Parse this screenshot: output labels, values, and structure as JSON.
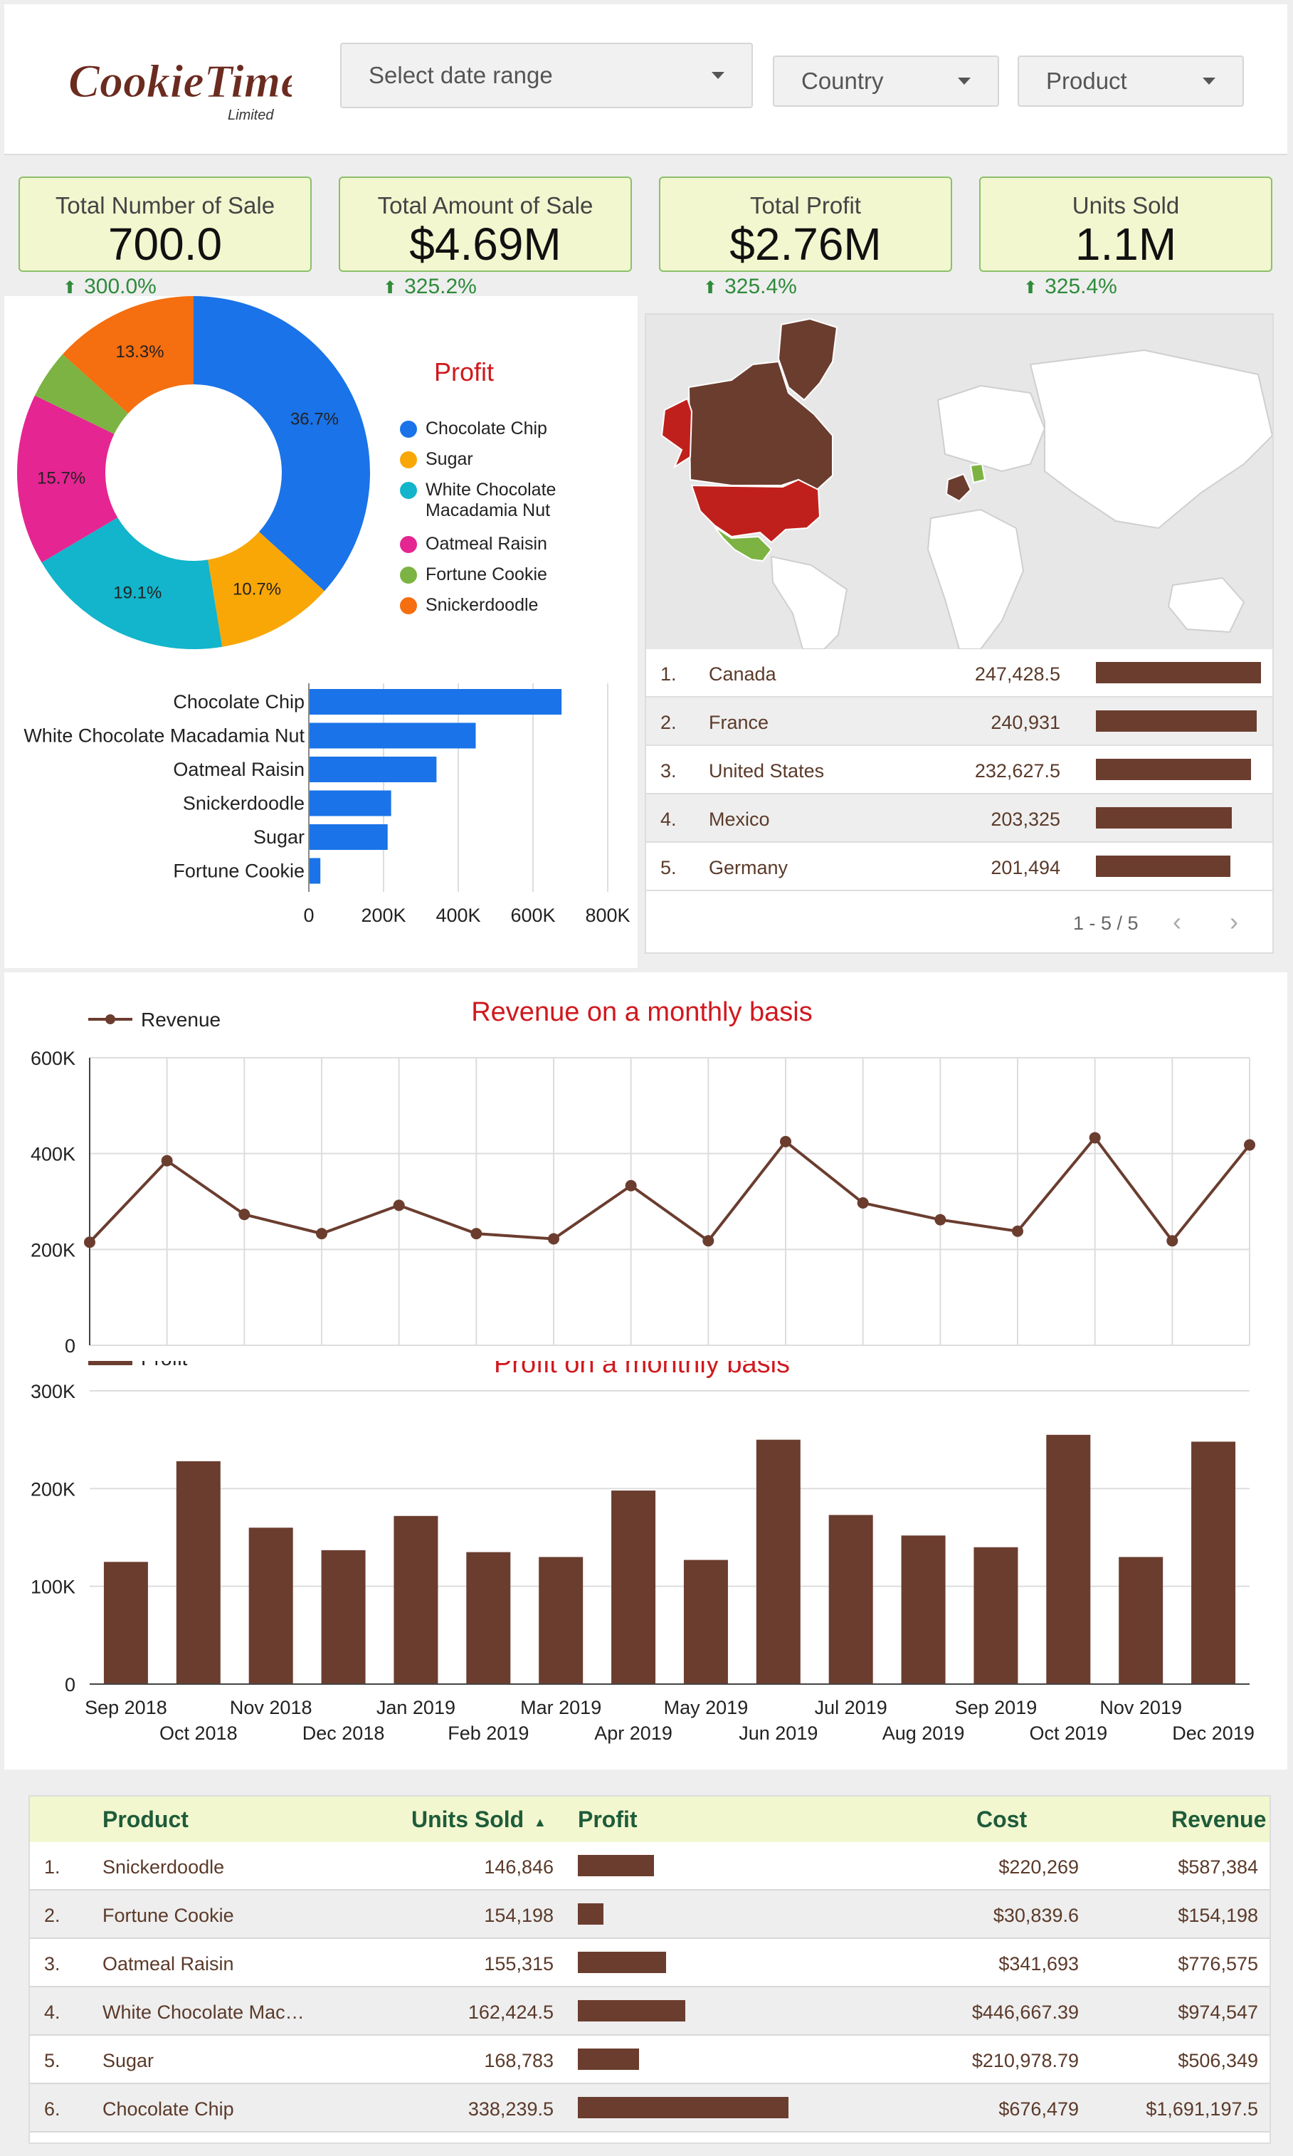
{
  "header": {
    "logo_text": "CookieTime",
    "logo_sub": "Limited",
    "date_range_placeholder": "Select date range",
    "country_label": "Country",
    "product_label": "Product"
  },
  "kpis": [
    {
      "label": "Total Number of Sale",
      "value": "700.0",
      "delta": "300.0%"
    },
    {
      "label": "Total Amount of Sale",
      "value": "$4.69M",
      "delta": "325.2%"
    },
    {
      "label": "Total Profit",
      "value": "$2.76M",
      "delta": "325.4%"
    },
    {
      "label": "Units Sold",
      "value": "1.1M",
      "delta": "325.4%"
    }
  ],
  "colors": {
    "brown": "#6b3d2f",
    "blue": "#1a73e8",
    "kpi_bg": "#f2f7cf",
    "green": "#2e8b3a",
    "red_title": "#d0191e"
  },
  "chart_data": [
    {
      "type": "pie",
      "title": "Profit",
      "labels": [
        "Chocolate Chip",
        "Sugar",
        "White Chocolate Macadamia Nut",
        "Oatmeal Raisin",
        "Fortune Cookie",
        "Snickerdoodle"
      ],
      "values": [
        36.7,
        10.7,
        19.1,
        15.7,
        4.5,
        13.3
      ],
      "value_labels": [
        "36.7%",
        "10.7%",
        "19.1%",
        "15.7%",
        "",
        "13.3%"
      ],
      "colors": [
        "#1a73e8",
        "#f9a707",
        "#12b5cb",
        "#e52592",
        "#7cb342",
        "#f56e0f"
      ]
    },
    {
      "type": "bar",
      "orientation": "horizontal",
      "categories": [
        "Chocolate Chip",
        "White Chocolate Macadamia Nut",
        "Oatmeal Raisin",
        "Snickerdoodle",
        "Sugar",
        "Fortune Cookie"
      ],
      "values": [
        676479,
        446667,
        341693,
        220269,
        210979,
        30840
      ],
      "xlim": [
        0,
        800000
      ],
      "xticks": [
        "0",
        "200K",
        "400K",
        "600K",
        "800K"
      ]
    },
    {
      "type": "line",
      "title": "Revenue on a monthly basis",
      "series": [
        {
          "name": "Revenue",
          "values": [
            215000,
            385000,
            273000,
            233000,
            292000,
            233000,
            222000,
            333000,
            218000,
            425000,
            297000,
            262000,
            238000,
            433000,
            218000,
            418000
          ]
        }
      ],
      "ylim": [
        0,
        600000
      ],
      "yticks": [
        "0",
        "200K",
        "400K",
        "600K"
      ]
    },
    {
      "type": "bar",
      "title": "Profit on a monthly basis",
      "categories": [
        "Sep 2018",
        "Oct 2018",
        "Nov 2018",
        "Dec 2018",
        "Jan 2019",
        "Feb 2019",
        "Mar 2019",
        "Apr 2019",
        "May 2019",
        "Jun 2019",
        "Jul 2019",
        "Aug 2019",
        "Sep 2019",
        "Oct 2019",
        "Nov 2019",
        "Dec 2019"
      ],
      "series": [
        {
          "name": "Profit",
          "values": [
            125000,
            228000,
            160000,
            137000,
            172000,
            135000,
            130000,
            198000,
            127000,
            250000,
            173000,
            152000,
            140000,
            255000,
            130000,
            248000
          ]
        }
      ],
      "ylim": [
        0,
        300000
      ],
      "yticks": [
        "0",
        "100K",
        "200K",
        "300K"
      ]
    }
  ],
  "country_table": {
    "rows": [
      {
        "rank": "1.",
        "country": "Canada",
        "value": "247,428.5",
        "ratio": 1.0
      },
      {
        "rank": "2.",
        "country": "France",
        "value": "240,931",
        "ratio": 0.974
      },
      {
        "rank": "3.",
        "country": "United States",
        "value": "232,627.5",
        "ratio": 0.94
      },
      {
        "rank": "4.",
        "country": "Mexico",
        "value": "203,325",
        "ratio": 0.822
      },
      {
        "rank": "5.",
        "country": "Germany",
        "value": "201,494",
        "ratio": 0.814
      }
    ],
    "pagination": "1 - 5 / 5"
  },
  "product_table": {
    "headers": {
      "product": "Product",
      "units": "Units Sold",
      "profit": "Profit",
      "cost": "Cost",
      "revenue": "Revenue"
    },
    "rows": [
      {
        "rank": "1.",
        "product": "Snickerdoodle",
        "units": "146,846",
        "profit_ratio": 0.36,
        "cost": "$220,269",
        "revenue": "$587,384"
      },
      {
        "rank": "2.",
        "product": "Fortune Cookie",
        "units": "154,198",
        "profit_ratio": 0.12,
        "cost": "$30,839.6",
        "revenue": "$154,198"
      },
      {
        "rank": "3.",
        "product": "Oatmeal Raisin",
        "units": "155,315",
        "profit_ratio": 0.42,
        "cost": "$341,693",
        "revenue": "$776,575"
      },
      {
        "rank": "4.",
        "product": "White Chocolate Mac…",
        "units": "162,424.5",
        "profit_ratio": 0.51,
        "cost": "$446,667.39",
        "revenue": "$974,547"
      },
      {
        "rank": "5.",
        "product": "Sugar",
        "units": "168,783",
        "profit_ratio": 0.29,
        "cost": "$210,978.79",
        "revenue": "$506,349"
      },
      {
        "rank": "6.",
        "product": "Chocolate Chip",
        "units": "338,239.5",
        "profit_ratio": 1.0,
        "cost": "$676,479",
        "revenue": "$1,691,197.5"
      }
    ]
  }
}
